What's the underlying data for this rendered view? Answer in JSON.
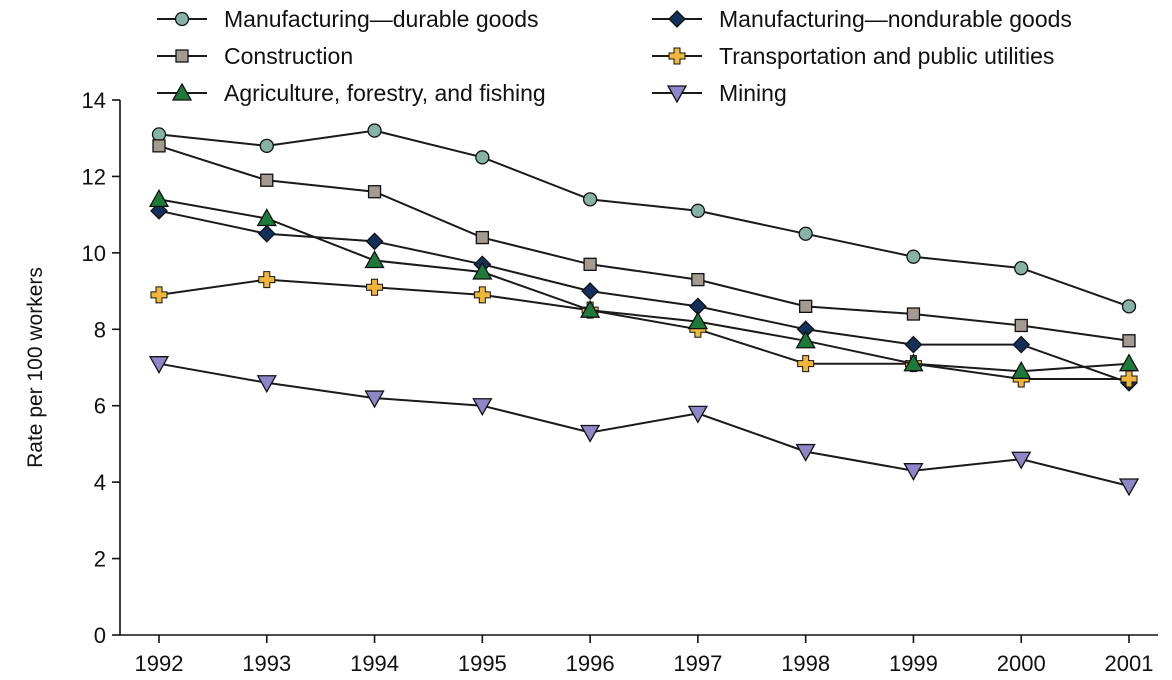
{
  "chart_data": {
    "type": "line",
    "title": "",
    "xlabel": "",
    "ylabel": "Rate per 100 workers",
    "x": [
      "1992",
      "1993",
      "1994",
      "1995",
      "1996",
      "1997",
      "1998",
      "1999",
      "2000",
      "2001"
    ],
    "ylim": [
      0,
      14
    ],
    "yticks": [
      "0",
      "2",
      "4",
      "6",
      "8",
      "10",
      "12",
      "14"
    ],
    "grid": false,
    "legend_position": "top",
    "series": [
      {
        "name": "Manufacturing—durable goods",
        "marker": "circle",
        "color": "#86b3a5",
        "values": [
          13.1,
          12.8,
          13.2,
          12.5,
          11.4,
          11.1,
          10.5,
          9.9,
          9.6,
          8.6
        ]
      },
      {
        "name": "Manufacturing—nondurable goods",
        "marker": "diamond",
        "color": "#12305a",
        "values": [
          11.1,
          10.5,
          10.3,
          9.7,
          9.0,
          8.6,
          8.0,
          7.6,
          7.6,
          6.6
        ]
      },
      {
        "name": "Construction",
        "marker": "square",
        "color": "#a39a91",
        "values": [
          12.8,
          11.9,
          11.6,
          10.4,
          9.7,
          9.3,
          8.6,
          8.4,
          8.1,
          7.7
        ]
      },
      {
        "name": "Transportation and public utilities",
        "marker": "plus",
        "color": "#f0b63c",
        "values": [
          8.9,
          9.3,
          9.1,
          8.9,
          8.5,
          8.0,
          7.1,
          7.1,
          6.7,
          6.7
        ]
      },
      {
        "name": "Agriculture, forestry, and fishing",
        "marker": "triangle-up",
        "color": "#1d7a3a",
        "values": [
          11.4,
          10.9,
          9.8,
          9.5,
          8.5,
          8.2,
          7.7,
          7.1,
          6.9,
          7.1
        ]
      },
      {
        "name": "Mining",
        "marker": "triangle-down",
        "color": "#8e86c8",
        "values": [
          7.1,
          6.6,
          6.2,
          6.0,
          5.3,
          5.8,
          4.8,
          4.3,
          4.6,
          3.9
        ]
      }
    ]
  }
}
